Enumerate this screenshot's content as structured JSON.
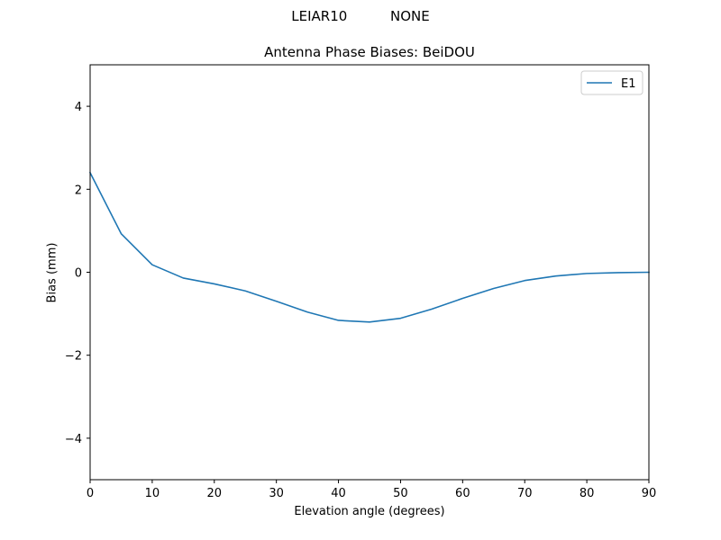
{
  "figure": {
    "suptitle_left": "LEIAR10",
    "suptitle_right": "NONE"
  },
  "chart_data": {
    "type": "line",
    "title": "Antenna Phase Biases: BeiDOU",
    "xlabel": "Elevation angle (degrees)",
    "ylabel": "Bias (mm)",
    "xlim": [
      0,
      90
    ],
    "ylim": [
      -5,
      5
    ],
    "xticks": [
      0,
      10,
      20,
      30,
      40,
      50,
      60,
      70,
      80,
      90
    ],
    "yticks": [
      -4,
      -2,
      0,
      2,
      4
    ],
    "grid": false,
    "legend": "upper-right",
    "series": [
      {
        "name": "E1",
        "color": "#1f77b4",
        "x": [
          0,
          5,
          10,
          15,
          20,
          25,
          30,
          35,
          40,
          45,
          50,
          55,
          60,
          65,
          70,
          75,
          80,
          85,
          90
        ],
        "y": [
          2.4,
          0.93,
          0.18,
          -0.14,
          -0.28,
          -0.45,
          -0.7,
          -0.96,
          -1.16,
          -1.2,
          -1.11,
          -0.89,
          -0.63,
          -0.39,
          -0.2,
          -0.09,
          -0.03,
          -0.01,
          0.0
        ]
      }
    ]
  }
}
